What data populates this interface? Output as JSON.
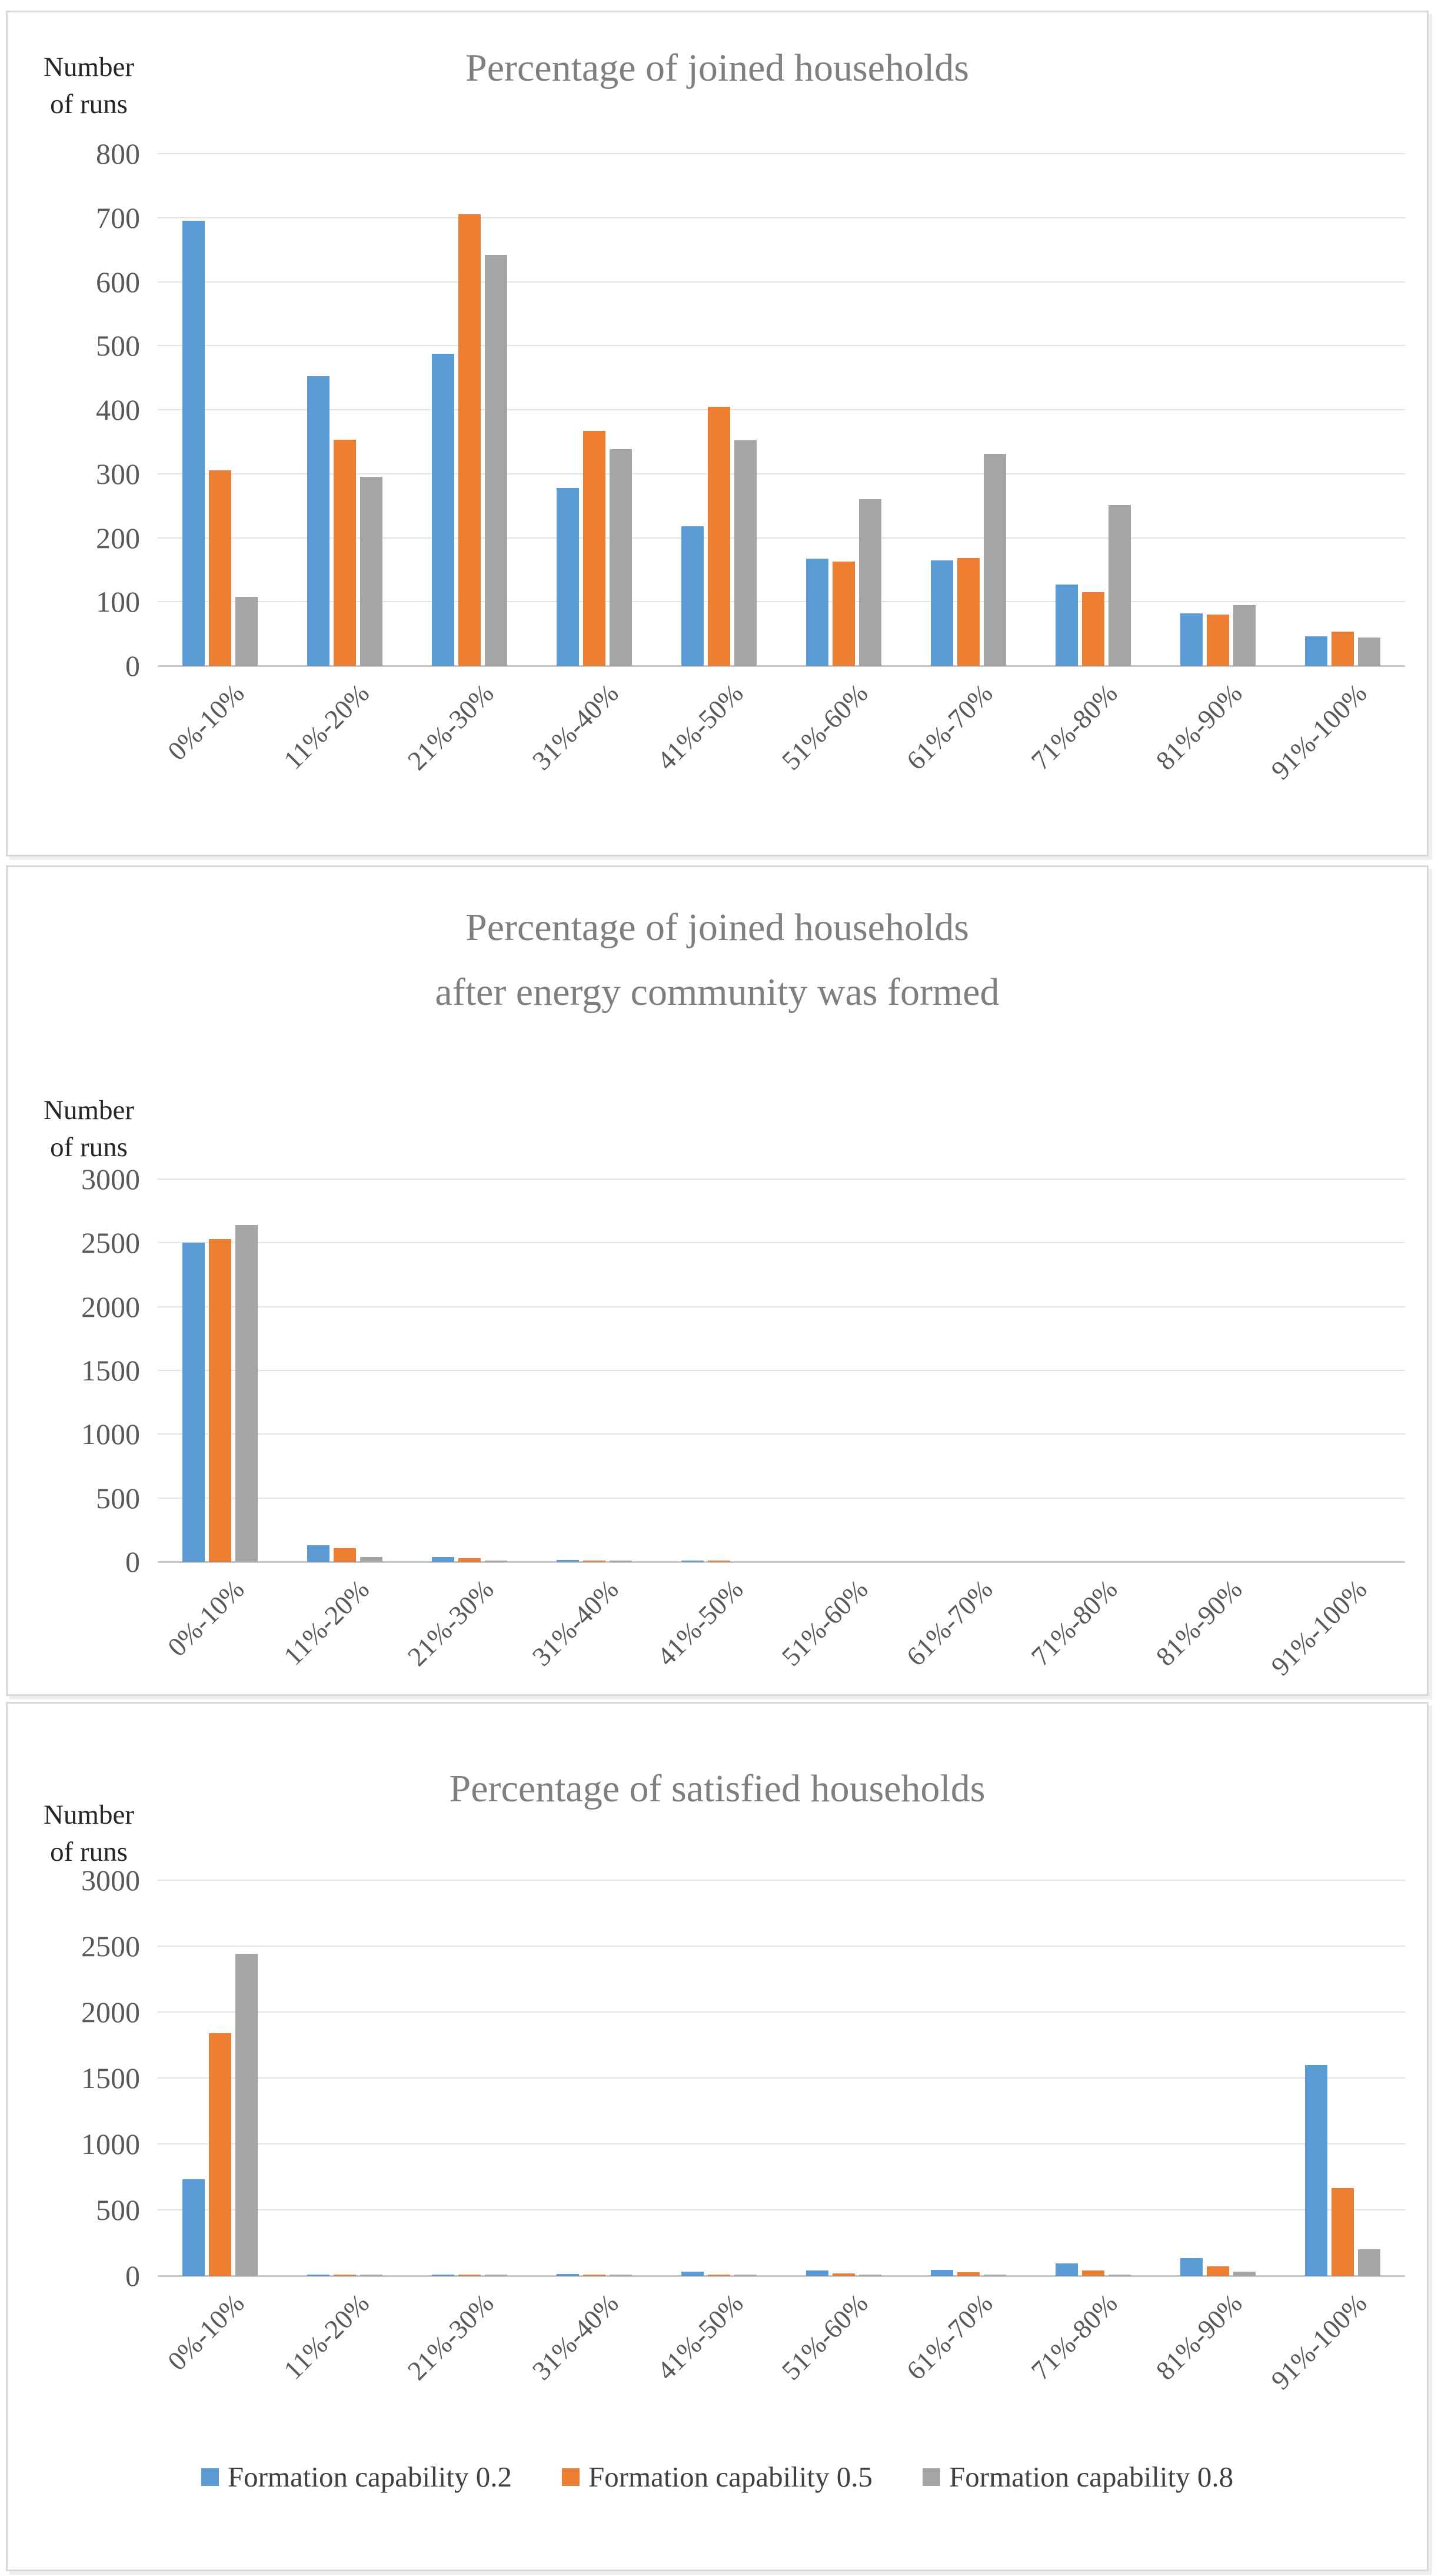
{
  "figure": {
    "background": "#FFFFFF",
    "panel_border_color": "#D9D9D9",
    "gridline_color": "#E4E4E4",
    "axis_line_color": "#C9C9C9",
    "title_color": "#7F7F7F",
    "axis_text_color": "#595959",
    "legend": {
      "items": [
        {
          "label": "Formation capability 0.2",
          "color": "#5B9BD5"
        },
        {
          "label": "Formation capability 0.5",
          "color": "#ED7D31"
        },
        {
          "label": "Formation capability 0.8",
          "color": "#A5A5A5"
        }
      ]
    }
  },
  "chart_data": [
    {
      "type": "bar",
      "title": "Percentage of joined households",
      "title_lines": [
        "Percentage of joined households"
      ],
      "ylabel": "Number of runs",
      "ylabel_lines": [
        "Number",
        "of runs"
      ],
      "ylim": [
        0,
        800
      ],
      "y_ticks": [
        800,
        700,
        600,
        500,
        400,
        300,
        200,
        100,
        0
      ],
      "grid": true,
      "legend_position": "none",
      "categories": [
        "0%-10%",
        "11%-20%",
        "21%-30%",
        "31%-40%",
        "41%-50%",
        "51%-60%",
        "61%-70%",
        "71%-80%",
        "81%-90%",
        "91%-100%"
      ],
      "series": [
        {
          "name": "Formation capability 0.2",
          "color": "#5B9BD5",
          "values": [
            695,
            452,
            487,
            278,
            218,
            167,
            165,
            127,
            82,
            46
          ]
        },
        {
          "name": "Formation capability 0.5",
          "color": "#ED7D31",
          "values": [
            305,
            353,
            705,
            367,
            405,
            163,
            168,
            115,
            80,
            53
          ]
        },
        {
          "name": "Formation capability 0.8",
          "color": "#A5A5A5",
          "values": [
            108,
            295,
            642,
            338,
            352,
            260,
            331,
            251,
            95,
            44
          ]
        }
      ]
    },
    {
      "type": "bar",
      "title": "Percentage of joined households after energy community was formed",
      "title_lines": [
        "Percentage of joined households",
        "after energy community was formed"
      ],
      "ylabel": "Number of runs",
      "ylabel_lines": [
        "Number",
        "of runs"
      ],
      "ylim": [
        0,
        3000
      ],
      "y_ticks": [
        3000,
        2500,
        2000,
        1500,
        1000,
        500,
        0
      ],
      "grid": true,
      "legend_position": "none",
      "categories": [
        "0%-10%",
        "11%-20%",
        "21%-30%",
        "31%-40%",
        "41%-50%",
        "51%-60%",
        "61%-70%",
        "71%-80%",
        "81%-90%",
        "91%-100%"
      ],
      "series": [
        {
          "name": "Formation capability 0.2",
          "color": "#5B9BD5",
          "values": [
            2500,
            130,
            35,
            12,
            6,
            0,
            0,
            0,
            0,
            0
          ]
        },
        {
          "name": "Formation capability 0.5",
          "color": "#ED7D31",
          "values": [
            2530,
            108,
            30,
            8,
            4,
            0,
            0,
            0,
            0,
            0
          ]
        },
        {
          "name": "Formation capability 0.8",
          "color": "#A5A5A5",
          "values": [
            2640,
            35,
            10,
            3,
            0,
            0,
            0,
            0,
            0,
            0
          ]
        }
      ]
    },
    {
      "type": "bar",
      "title": "Percentage of satisfied households",
      "title_lines": [
        "Percentage of satisfied households"
      ],
      "ylabel": "Number of runs",
      "ylabel_lines": [
        "Number",
        "of runs"
      ],
      "ylim": [
        0,
        3000
      ],
      "y_ticks": [
        3000,
        2500,
        2000,
        1500,
        1000,
        500,
        0
      ],
      "grid": true,
      "legend_position": "bottom",
      "categories": [
        "0%-10%",
        "11%-20%",
        "21%-30%",
        "31%-40%",
        "41%-50%",
        "51%-60%",
        "61%-70%",
        "71%-80%",
        "81%-90%",
        "91%-100%"
      ],
      "series": [
        {
          "name": "Formation capability 0.2",
          "color": "#5B9BD5",
          "values": [
            730,
            10,
            8,
            12,
            30,
            38,
            45,
            92,
            135,
            1600
          ]
        },
        {
          "name": "Formation capability 0.5",
          "color": "#ED7D31",
          "values": [
            1840,
            4,
            3,
            5,
            8,
            20,
            26,
            42,
            72,
            665
          ]
        },
        {
          "name": "Formation capability 0.8",
          "color": "#A5A5A5",
          "values": [
            2440,
            3,
            2,
            3,
            2,
            3,
            4,
            8,
            30,
            200
          ]
        }
      ]
    }
  ]
}
